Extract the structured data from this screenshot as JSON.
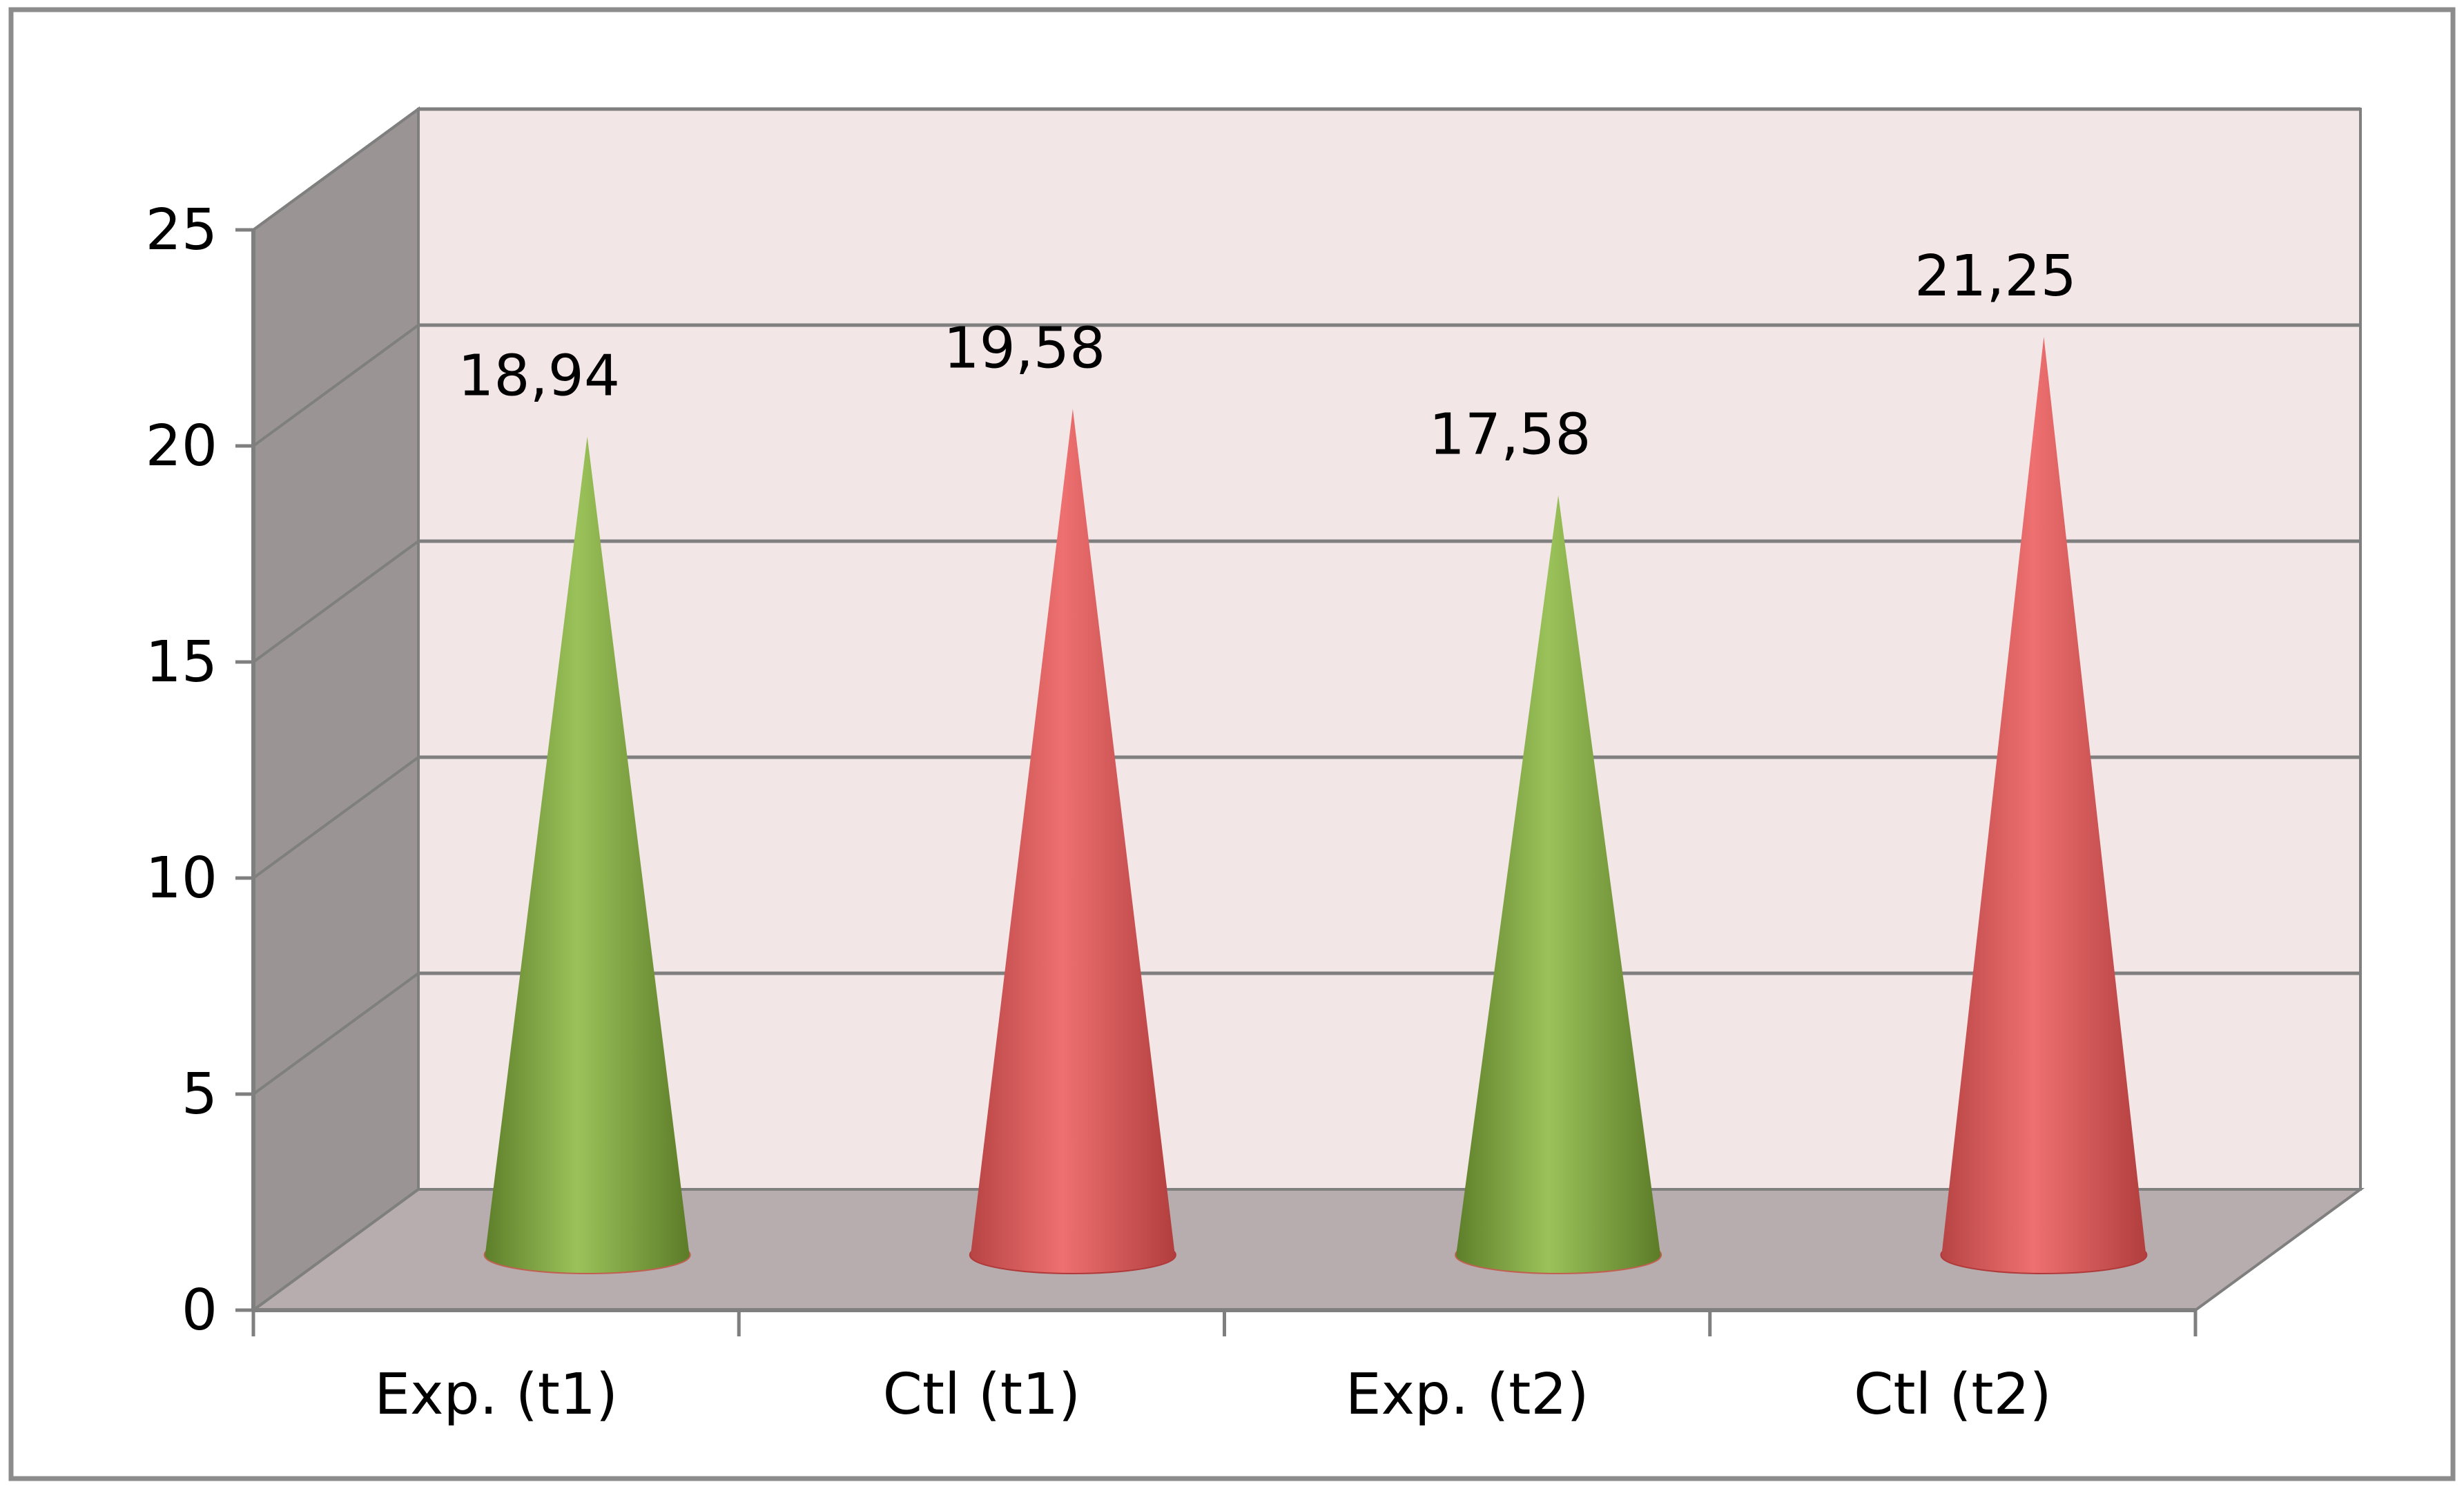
{
  "chart_data": {
    "type": "bar",
    "shape": "cone",
    "style": "3d",
    "title": "",
    "xlabel": "",
    "ylabel": "",
    "categories": [
      "Exp. (t1)",
      "Ctl (t1)",
      "Exp. (t2)",
      "Ctl (t2)"
    ],
    "values": [
      18.94,
      19.58,
      17.58,
      21.25
    ],
    "data_labels": [
      "18,94",
      "19,58",
      "17,58",
      "21,25"
    ],
    "bar_colors": [
      "#8BB04A",
      "#E06060",
      "#8BB04A",
      "#E06060"
    ],
    "ylim": [
      0,
      25
    ],
    "yticks": [
      0,
      5,
      10,
      15,
      20,
      25
    ],
    "ytick_labels": [
      "0",
      "5",
      "10",
      "15",
      "20",
      "25"
    ],
    "grid": true,
    "legend": "none",
    "colors": {
      "back_wall": "#F3E6E7",
      "side_wall": "#9A9494",
      "floor": "#B7ACAE",
      "grid": "#7F7F7F",
      "frame": "#8C8C8C"
    }
  }
}
